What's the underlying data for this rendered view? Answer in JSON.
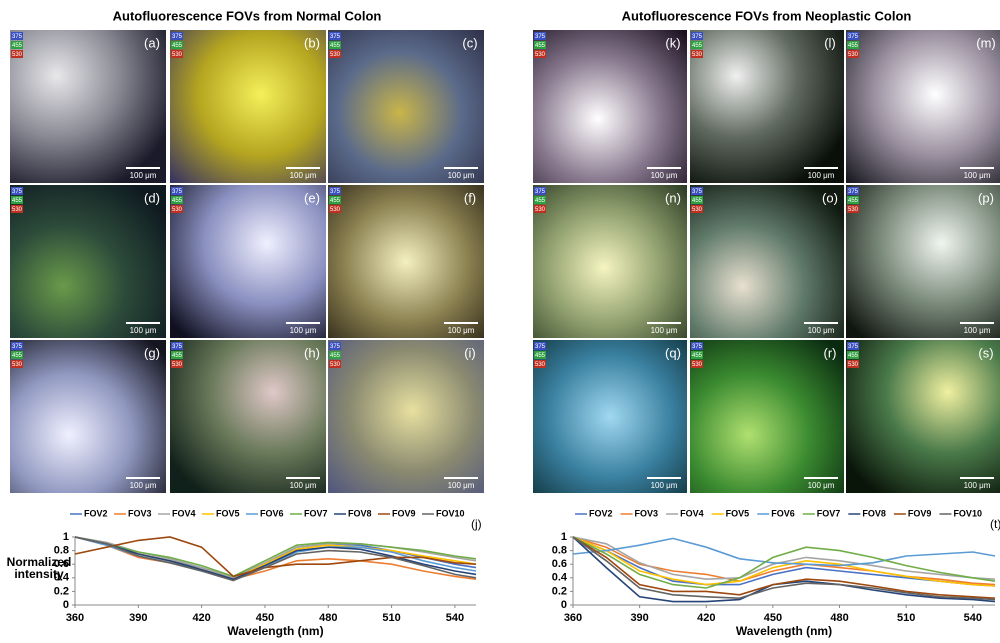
{
  "panels": [
    {
      "title": "Autofluorescence FOVs from Normal Colon",
      "tiles": [
        "(a)",
        "(b)",
        "(c)",
        "(d)",
        "(e)",
        "(f)",
        "(g)",
        "(h)",
        "(i)"
      ]
    },
    {
      "title": "Autofluorescence FOVs from Neoplastic Colon",
      "tiles": [
        "(k)",
        "(l)",
        "(m)",
        "(n)",
        "(o)",
        "(p)",
        "(q)",
        "(r)",
        "(s)"
      ]
    }
  ],
  "scale_bar": "100 μm",
  "channels": [
    "375",
    "455",
    "530"
  ],
  "chart_data": [
    {
      "type": "line",
      "panel_label": "(j)",
      "ylabel": "Normalized intensity",
      "xlabel": "Wavelength (nm)",
      "x": [
        360,
        375,
        390,
        405,
        420,
        435,
        450,
        465,
        480,
        495,
        510,
        525,
        540,
        550
      ],
      "xlim": [
        360,
        550
      ],
      "xticks": [
        360,
        390,
        420,
        450,
        480,
        510,
        540
      ],
      "ylim": [
        0,
        1
      ],
      "yticks": [
        0,
        0.2,
        0.4,
        0.6,
        0.8,
        1
      ],
      "series": [
        {
          "name": "FOV2",
          "color": "#4a72c4",
          "values": [
            1,
            0.9,
            0.75,
            0.65,
            0.55,
            0.4,
            0.6,
            0.85,
            0.9,
            0.88,
            0.8,
            0.7,
            0.6,
            0.55
          ]
        },
        {
          "name": "FOV3",
          "color": "#ed7d31",
          "values": [
            1,
            0.88,
            0.7,
            0.62,
            0.52,
            0.38,
            0.5,
            0.65,
            0.68,
            0.65,
            0.6,
            0.5,
            0.42,
            0.38
          ]
        },
        {
          "name": "FOV4",
          "color": "#a5a5a5",
          "values": [
            1,
            0.92,
            0.78,
            0.68,
            0.55,
            0.4,
            0.62,
            0.85,
            0.9,
            0.9,
            0.85,
            0.78,
            0.7,
            0.65
          ]
        },
        {
          "name": "FOV5",
          "color": "#ffc000",
          "values": [
            1,
            0.9,
            0.75,
            0.65,
            0.52,
            0.38,
            0.6,
            0.82,
            0.88,
            0.85,
            0.8,
            0.72,
            0.65,
            0.6
          ]
        },
        {
          "name": "FOV6",
          "color": "#5b9bd5",
          "values": [
            1,
            0.88,
            0.72,
            0.62,
            0.5,
            0.38,
            0.55,
            0.78,
            0.85,
            0.85,
            0.78,
            0.65,
            0.55,
            0.5
          ]
        },
        {
          "name": "FOV7",
          "color": "#70ad47",
          "values": [
            1,
            0.9,
            0.78,
            0.7,
            0.58,
            0.42,
            0.65,
            0.88,
            0.92,
            0.9,
            0.85,
            0.8,
            0.72,
            0.68
          ]
        },
        {
          "name": "FOV8",
          "color": "#264478",
          "values": [
            1,
            0.9,
            0.75,
            0.65,
            0.52,
            0.38,
            0.58,
            0.8,
            0.85,
            0.82,
            0.72,
            0.6,
            0.5,
            0.45
          ]
        },
        {
          "name": "FOV9",
          "color": "#9e480e",
          "values": [
            0.75,
            0.85,
            0.95,
            1,
            0.85,
            0.42,
            0.55,
            0.6,
            0.6,
            0.65,
            0.7,
            0.7,
            0.62,
            0.6
          ]
        },
        {
          "name": "FOV10",
          "color": "#636363",
          "values": [
            1,
            0.9,
            0.72,
            0.62,
            0.5,
            0.36,
            0.55,
            0.75,
            0.8,
            0.78,
            0.7,
            0.58,
            0.45,
            0.4
          ]
        }
      ]
    },
    {
      "type": "line",
      "panel_label": "(t)",
      "xlabel": "Wavelength (nm)",
      "x": [
        360,
        375,
        390,
        405,
        420,
        435,
        450,
        465,
        480,
        495,
        510,
        525,
        540,
        550
      ],
      "xlim": [
        360,
        550
      ],
      "xticks": [
        360,
        390,
        420,
        450,
        480,
        510,
        540
      ],
      "ylim": [
        0,
        1
      ],
      "yticks": [
        0,
        0.2,
        0.4,
        0.6,
        0.8,
        1
      ],
      "series": [
        {
          "name": "FOV2",
          "color": "#4a72c4",
          "values": [
            1,
            0.8,
            0.55,
            0.35,
            0.3,
            0.3,
            0.45,
            0.55,
            0.5,
            0.45,
            0.4,
            0.35,
            0.3,
            0.28
          ]
        },
        {
          "name": "FOV3",
          "color": "#ed7d31",
          "values": [
            1,
            0.85,
            0.6,
            0.5,
            0.45,
            0.35,
            0.5,
            0.6,
            0.55,
            0.5,
            0.42,
            0.38,
            0.32,
            0.3
          ]
        },
        {
          "name": "FOV4",
          "color": "#a5a5a5",
          "values": [
            1,
            0.9,
            0.62,
            0.45,
            0.38,
            0.4,
            0.6,
            0.7,
            0.65,
            0.58,
            0.5,
            0.45,
            0.4,
            0.38
          ]
        },
        {
          "name": "FOV5",
          "color": "#ffc000",
          "values": [
            1,
            0.8,
            0.5,
            0.38,
            0.3,
            0.35,
            0.55,
            0.65,
            0.6,
            0.5,
            0.42,
            0.35,
            0.3,
            0.28
          ]
        },
        {
          "name": "FOV6",
          "color": "#5b9bd5",
          "values": [
            0.75,
            0.8,
            0.88,
            0.98,
            0.85,
            0.68,
            0.62,
            0.6,
            0.58,
            0.62,
            0.72,
            0.75,
            0.78,
            0.72
          ]
        },
        {
          "name": "FOV7",
          "color": "#70ad47",
          "values": [
            1,
            0.75,
            0.45,
            0.3,
            0.25,
            0.4,
            0.7,
            0.85,
            0.8,
            0.7,
            0.58,
            0.48,
            0.4,
            0.35
          ]
        },
        {
          "name": "FOV8",
          "color": "#264478",
          "values": [
            1,
            0.55,
            0.12,
            0.05,
            0.05,
            0.08,
            0.3,
            0.35,
            0.3,
            0.22,
            0.15,
            0.1,
            0.08,
            0.05
          ]
        },
        {
          "name": "FOV9",
          "color": "#9e480e",
          "values": [
            1,
            0.7,
            0.3,
            0.2,
            0.2,
            0.15,
            0.3,
            0.38,
            0.35,
            0.28,
            0.2,
            0.15,
            0.12,
            0.1
          ]
        },
        {
          "name": "FOV10",
          "color": "#636363",
          "values": [
            1,
            0.65,
            0.25,
            0.15,
            0.12,
            0.1,
            0.25,
            0.32,
            0.3,
            0.25,
            0.18,
            0.12,
            0.1,
            0.08
          ]
        }
      ]
    }
  ]
}
